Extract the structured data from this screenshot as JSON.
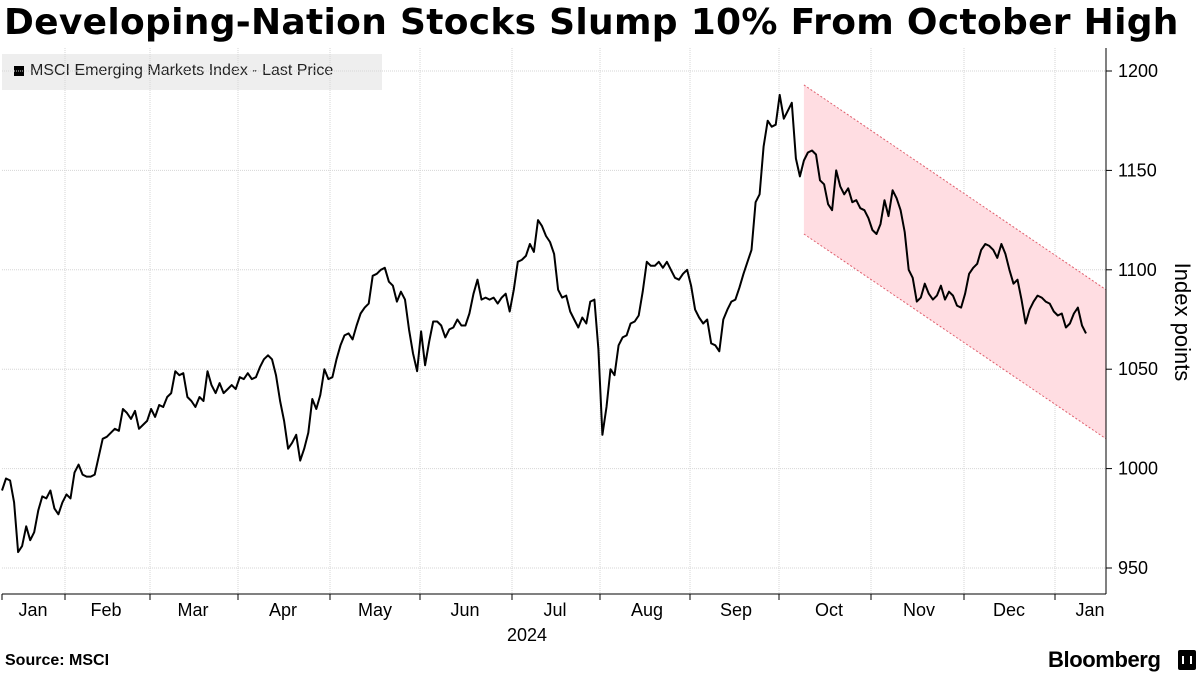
{
  "chart_data": {
    "type": "line",
    "title": "Developing-Nation Stocks Slump 10% From October High",
    "legend": "MSCI Emerging Markets Index - Last Price",
    "ylabel": "Index points",
    "ylim": [
      940,
      1210
    ],
    "yticks": [
      950,
      1000,
      1050,
      1100,
      1150,
      1200
    ],
    "x_tick_labels": [
      "Jan",
      "Feb",
      "Mar",
      "Apr",
      "May",
      "Jun",
      "Jul",
      "Aug",
      "Sep",
      "Oct",
      "Nov",
      "Dec",
      "Jan"
    ],
    "x_year_label": "2024",
    "series": [
      {
        "name": "MSCI Emerging Markets Index - Last Price",
        "color": "#000000",
        "values": [
          989,
          995,
          994,
          983,
          958,
          961,
          971,
          964,
          968,
          979,
          986,
          985,
          989,
          980,
          977,
          983,
          987,
          985,
          998,
          1002,
          997,
          996,
          996,
          997,
          1006,
          1015,
          1016,
          1018,
          1020,
          1019,
          1030,
          1028,
          1025,
          1029,
          1020,
          1022,
          1024,
          1030,
          1026,
          1032,
          1031,
          1036,
          1038,
          1049,
          1047,
          1048,
          1036,
          1034,
          1031,
          1036,
          1034,
          1049,
          1042,
          1038,
          1043,
          1038,
          1040,
          1042,
          1040,
          1046,
          1045,
          1048,
          1045,
          1046,
          1051,
          1055,
          1057,
          1055,
          1047,
          1034,
          1024,
          1010,
          1013,
          1017,
          1004,
          1010,
          1018,
          1035,
          1030,
          1037,
          1050,
          1045,
          1046,
          1055,
          1062,
          1067,
          1068,
          1065,
          1072,
          1078,
          1081,
          1083,
          1097,
          1098,
          1100,
          1101,
          1094,
          1092,
          1084,
          1089,
          1085,
          1070,
          1058,
          1049,
          1069,
          1052,
          1064,
          1074,
          1074,
          1072,
          1066,
          1070,
          1071,
          1075,
          1072,
          1072,
          1078,
          1088,
          1095,
          1085,
          1086,
          1085,
          1086,
          1083,
          1086,
          1088,
          1079,
          1090,
          1104,
          1105,
          1107,
          1113,
          1109,
          1125,
          1122,
          1117,
          1114,
          1108,
          1090,
          1086,
          1087,
          1079,
          1075,
          1071,
          1076,
          1073,
          1084,
          1085,
          1060,
          1017,
          1031,
          1050,
          1047,
          1062,
          1066,
          1067,
          1073,
          1074,
          1077,
          1089,
          1104,
          1102,
          1102,
          1104,
          1101,
          1104,
          1100,
          1096,
          1095,
          1098,
          1100,
          1092,
          1080,
          1076,
          1073,
          1075,
          1063,
          1062,
          1059,
          1075,
          1080,
          1084,
          1085,
          1091,
          1098,
          1104,
          1110,
          1134,
          1138,
          1162,
          1175,
          1172,
          1173,
          1188,
          1176,
          1180,
          1184,
          1156,
          1147,
          1155,
          1159,
          1160,
          1158,
          1145,
          1143,
          1133,
          1130,
          1150,
          1142,
          1138,
          1141,
          1134,
          1135,
          1131,
          1130,
          1126,
          1120,
          1118,
          1123,
          1135,
          1127,
          1140,
          1136,
          1130,
          1119,
          1100,
          1096,
          1084,
          1086,
          1093,
          1088,
          1085,
          1087,
          1092,
          1085,
          1089,
          1087,
          1082,
          1081,
          1088,
          1098,
          1101,
          1103,
          1110,
          1113,
          1112,
          1110,
          1106,
          1113,
          1108,
          1100,
          1093,
          1095,
          1085,
          1073,
          1080,
          1084,
          1087,
          1086,
          1084,
          1083,
          1079,
          1077,
          1078,
          1071,
          1073,
          1078,
          1081,
          1072,
          1068
        ]
      }
    ],
    "channel": {
      "color": "#ffdde2",
      "edge_color": "#e0606e",
      "start_index": 199,
      "upper": [
        1193,
        1090
      ],
      "lower": [
        1118,
        1015
      ]
    }
  },
  "footer": {
    "source": "Source: MSCI",
    "brand": "Bloomberg"
  }
}
